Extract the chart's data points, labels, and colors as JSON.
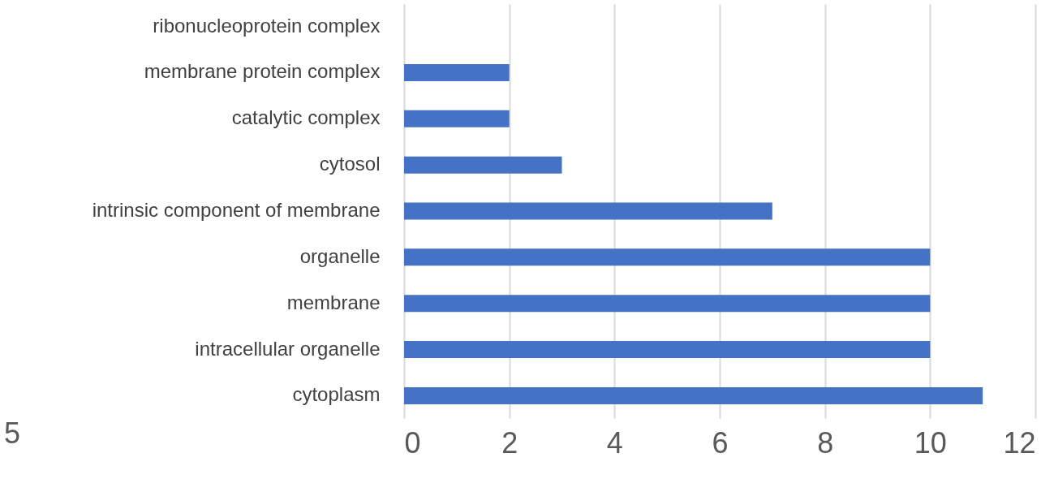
{
  "chart_data": {
    "type": "bar",
    "orientation": "horizontal",
    "categories": [
      "ribonucleoprotein complex",
      "membrane protein complex",
      "catalytic complex",
      "cytosol",
      "intrinsic component of membrane",
      "organelle",
      "membrane",
      "intracellular organelle",
      "cytoplasm"
    ],
    "values": [
      0,
      2,
      2,
      3,
      7,
      10,
      10,
      10,
      11
    ],
    "color": "#4472c4",
    "xlim": [
      0,
      12
    ],
    "xticks": [
      0,
      2,
      4,
      6,
      8,
      10,
      12
    ],
    "grid": "x",
    "annotations": [
      "5"
    ]
  }
}
